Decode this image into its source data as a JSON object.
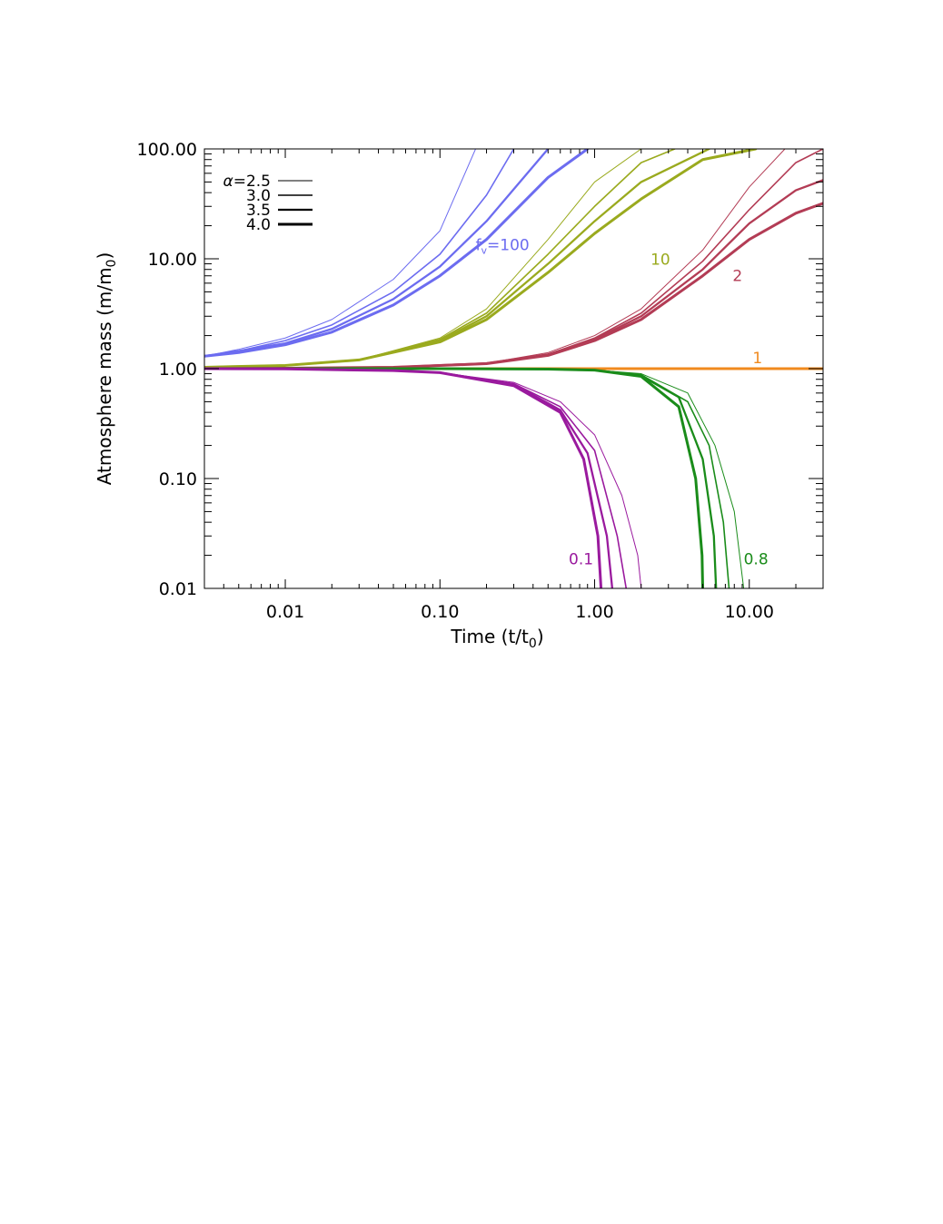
{
  "chart_data": {
    "type": "line",
    "xlabel": "Time (t/t",
    "xlabel_sub": "0",
    "xlabel_tail": ")",
    "ylabel": "Atmosphere mass (m/m",
    "ylabel_sub": "0",
    "ylabel_tail": ")",
    "xscale": "log",
    "yscale": "log",
    "xlim": [
      0.003,
      30
    ],
    "ylim": [
      0.01,
      100
    ],
    "xticks": [
      0.01,
      0.1,
      1,
      10
    ],
    "xtick_labels": [
      "0.01",
      "0.10",
      "1.00",
      "10.00"
    ],
    "yticks": [
      0.01,
      0.1,
      1,
      10,
      100
    ],
    "ytick_labels": [
      "0.01",
      "0.10",
      "1.00",
      "10.00",
      "100.00"
    ],
    "legend": {
      "position": "top-left",
      "symbol": "α",
      "entries": [
        {
          "label": "=2.5",
          "alpha": 2.5
        },
        {
          "label": "3.0",
          "alpha": 3.0
        },
        {
          "label": "3.5",
          "alpha": 3.5
        },
        {
          "label": "4.0",
          "alpha": 4.0
        }
      ],
      "color": "#000000"
    },
    "groups": [
      {
        "fv": 100,
        "label": "=100",
        "label_prefix": "f",
        "label_sub": "v",
        "color": "#6c6cf0",
        "label_at": [
          0.17,
          12
        ],
        "series": [
          {
            "alpha": 2.5,
            "x": [
              0.003,
              0.005,
              0.01,
              0.02,
              0.05,
              0.1,
              0.17
            ],
            "y": [
              1.3,
              1.5,
              1.9,
              2.8,
              6.5,
              18,
              100
            ]
          },
          {
            "alpha": 3.0,
            "x": [
              0.003,
              0.005,
              0.01,
              0.02,
              0.05,
              0.1,
              0.2,
              0.3
            ],
            "y": [
              1.3,
              1.45,
              1.8,
              2.5,
              5,
              11,
              38,
              100
            ]
          },
          {
            "alpha": 3.5,
            "x": [
              0.003,
              0.005,
              0.01,
              0.02,
              0.05,
              0.1,
              0.2,
              0.5
            ],
            "y": [
              1.3,
              1.45,
              1.7,
              2.3,
              4.3,
              8.5,
              22,
              100
            ]
          },
          {
            "alpha": 4.0,
            "x": [
              0.003,
              0.005,
              0.01,
              0.02,
              0.05,
              0.1,
              0.2,
              0.5,
              0.9
            ],
            "y": [
              1.3,
              1.4,
              1.65,
              2.15,
              3.8,
              7,
              15,
              55,
              100
            ]
          }
        ]
      },
      {
        "fv": 10,
        "label": "10",
        "color": "#9aaa1e",
        "label_at": [
          2.3,
          8.8
        ],
        "series": [
          {
            "alpha": 2.5,
            "x": [
              0.003,
              0.01,
              0.03,
              0.1,
              0.2,
              0.5,
              1,
              2
            ],
            "y": [
              1.03,
              1.07,
              1.2,
              1.9,
              3.5,
              15,
              50,
              100
            ]
          },
          {
            "alpha": 3.0,
            "x": [
              0.003,
              0.01,
              0.03,
              0.1,
              0.2,
              0.5,
              1,
              2,
              3.3
            ],
            "y": [
              1.03,
              1.07,
              1.2,
              1.85,
              3.2,
              11,
              30,
              75,
              100
            ]
          },
          {
            "alpha": 3.5,
            "x": [
              0.003,
              0.01,
              0.03,
              0.1,
              0.2,
              0.5,
              1,
              2,
              5.5
            ],
            "y": [
              1.03,
              1.07,
              1.2,
              1.8,
              3,
              9,
              22,
              50,
              100
            ]
          },
          {
            "alpha": 4.0,
            "x": [
              0.003,
              0.01,
              0.03,
              0.1,
              0.2,
              0.5,
              1,
              2,
              5,
              11
            ],
            "y": [
              1.03,
              1.07,
              1.2,
              1.75,
              2.8,
              7.5,
              17,
              35,
              80,
              100
            ]
          }
        ]
      },
      {
        "fv": 2,
        "label": "2",
        "color": "#b33c55",
        "label_at": [
          7.8,
          6.3
        ],
        "series": [
          {
            "alpha": 2.5,
            "x": [
              0.003,
              0.01,
              0.05,
              0.2,
              0.5,
              1,
              2,
              5,
              10,
              17
            ],
            "y": [
              1.0,
              1.01,
              1.03,
              1.12,
              1.4,
              2,
              3.5,
              12,
              45,
              100
            ]
          },
          {
            "alpha": 3.0,
            "x": [
              0.003,
              0.01,
              0.05,
              0.2,
              0.5,
              1,
              2,
              5,
              10,
              20,
              30
            ],
            "y": [
              1.0,
              1.01,
              1.03,
              1.12,
              1.35,
              1.9,
              3.2,
              9.5,
              28,
              75,
              100
            ]
          },
          {
            "alpha": 3.5,
            "x": [
              0.003,
              0.01,
              0.05,
              0.2,
              0.5,
              1,
              2,
              5,
              10,
              20,
              30
            ],
            "y": [
              1.0,
              1.01,
              1.03,
              1.12,
              1.35,
              1.85,
              3,
              8,
              21,
              42,
              52
            ]
          },
          {
            "alpha": 4.0,
            "x": [
              0.003,
              0.01,
              0.05,
              0.2,
              0.5,
              1,
              2,
              5,
              10,
              20,
              30
            ],
            "y": [
              1.0,
              1.01,
              1.03,
              1.11,
              1.32,
              1.8,
              2.8,
              7,
              15,
              26,
              32
            ]
          }
        ]
      },
      {
        "fv": 1,
        "label": "1",
        "color": "#f08a1e",
        "label_at": [
          10.5,
          1.12
        ],
        "series": [
          {
            "alpha": 2.5,
            "x": [
              0.003,
              30
            ],
            "y": [
              1.0,
              1.0
            ]
          },
          {
            "alpha": 3.0,
            "x": [
              0.003,
              30
            ],
            "y": [
              1.0,
              1.0
            ]
          },
          {
            "alpha": 3.5,
            "x": [
              0.003,
              30
            ],
            "y": [
              1.0,
              1.0
            ]
          },
          {
            "alpha": 4.0,
            "x": [
              0.003,
              30
            ],
            "y": [
              1.0,
              1.0
            ]
          }
        ]
      },
      {
        "fv": 0.8,
        "label": "0.8",
        "color": "#1a8c1a",
        "label_at": [
          9.2,
          0.0165
        ],
        "series": [
          {
            "alpha": 2.5,
            "x": [
              0.003,
              0.1,
              0.5,
              1,
              2,
              4,
              6,
              8,
              9.2
            ],
            "y": [
              1.0,
              0.999,
              0.99,
              0.97,
              0.9,
              0.6,
              0.2,
              0.05,
              0.01
            ]
          },
          {
            "alpha": 3.0,
            "x": [
              0.003,
              0.1,
              0.5,
              1,
              2,
              4,
              5.5,
              6.8,
              7.4
            ],
            "y": [
              1.0,
              0.999,
              0.99,
              0.97,
              0.88,
              0.5,
              0.2,
              0.04,
              0.01
            ]
          },
          {
            "alpha": 3.5,
            "x": [
              0.003,
              0.1,
              0.5,
              1,
              2,
              3.5,
              5,
              5.9,
              6.1
            ],
            "y": [
              1.0,
              0.999,
              0.99,
              0.97,
              0.86,
              0.55,
              0.15,
              0.03,
              0.01
            ]
          },
          {
            "alpha": 4.0,
            "x": [
              0.003,
              0.1,
              0.5,
              1,
              2,
              3.5,
              4.5,
              4.95,
              5.0
            ],
            "y": [
              1.0,
              0.999,
              0.99,
              0.97,
              0.85,
              0.45,
              0.1,
              0.02,
              0.01
            ]
          }
        ]
      },
      {
        "fv": 0.1,
        "label": "0.1",
        "color": "#9a1a9e",
        "label_at": [
          0.68,
          0.0165
        ],
        "series": [
          {
            "alpha": 2.5,
            "x": [
              0.003,
              0.01,
              0.05,
              0.1,
              0.3,
              0.6,
              1,
              1.5,
              1.9,
              2.0
            ],
            "y": [
              1.0,
              0.995,
              0.96,
              0.92,
              0.75,
              0.5,
              0.25,
              0.07,
              0.02,
              0.01
            ]
          },
          {
            "alpha": 3.0,
            "x": [
              0.003,
              0.01,
              0.05,
              0.1,
              0.3,
              0.6,
              1,
              1.4,
              1.6
            ],
            "y": [
              1.0,
              0.995,
              0.96,
              0.92,
              0.73,
              0.45,
              0.18,
              0.03,
              0.01
            ]
          },
          {
            "alpha": 3.5,
            "x": [
              0.003,
              0.01,
              0.05,
              0.1,
              0.3,
              0.6,
              0.9,
              1.2,
              1.3
            ],
            "y": [
              1.0,
              0.995,
              0.96,
              0.92,
              0.72,
              0.42,
              0.17,
              0.03,
              0.01
            ]
          },
          {
            "alpha": 4.0,
            "x": [
              0.003,
              0.01,
              0.05,
              0.1,
              0.3,
              0.6,
              0.85,
              1.05,
              1.1
            ],
            "y": [
              1.0,
              0.995,
              0.96,
              0.92,
              0.7,
              0.4,
              0.15,
              0.03,
              0.01
            ]
          }
        ]
      }
    ]
  }
}
